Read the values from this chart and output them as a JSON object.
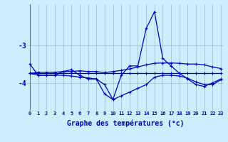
{
  "xlabel": "Graphe des températures (°c)",
  "background_color": "#cceeff",
  "plot_bg_color": "#cceeff",
  "line_color": "#0000bb",
  "grid_color": "#99bbcc",
  "hours": [
    0,
    1,
    2,
    3,
    4,
    5,
    6,
    7,
    8,
    9,
    10,
    11,
    12,
    13,
    14,
    15,
    16,
    17,
    18,
    19,
    20,
    21,
    22,
    23
  ],
  "temp_main": [
    -3.5,
    -3.8,
    -3.8,
    -3.8,
    -3.7,
    -3.65,
    -3.8,
    -3.9,
    -3.9,
    -4.3,
    -4.45,
    -3.8,
    -3.55,
    -3.55,
    -2.55,
    -2.1,
    -3.35,
    -3.55,
    -3.75,
    -3.9,
    -4.05,
    -4.1,
    -4.0,
    -3.9
  ],
  "temp_flat": [
    -3.75,
    -3.75,
    -3.75,
    -3.75,
    -3.75,
    -3.75,
    -3.75,
    -3.75,
    -3.75,
    -3.75,
    -3.75,
    -3.75,
    -3.75,
    -3.75,
    -3.75,
    -3.75,
    -3.75,
    -3.75,
    -3.75,
    -3.75,
    -3.75,
    -3.75,
    -3.75,
    -3.75
  ],
  "temp_min": [
    -3.75,
    -3.8,
    -3.8,
    -3.8,
    -3.8,
    -3.82,
    -3.85,
    -3.87,
    -3.9,
    -4.05,
    -4.45,
    -4.35,
    -4.25,
    -4.15,
    -4.05,
    -3.85,
    -3.8,
    -3.8,
    -3.82,
    -3.88,
    -3.98,
    -4.05,
    -4.05,
    -3.92
  ],
  "temp_max": [
    -3.75,
    -3.72,
    -3.72,
    -3.72,
    -3.7,
    -3.7,
    -3.68,
    -3.7,
    -3.7,
    -3.73,
    -3.7,
    -3.67,
    -3.63,
    -3.58,
    -3.52,
    -3.48,
    -3.47,
    -3.47,
    -3.48,
    -3.5,
    -3.5,
    -3.52,
    -3.58,
    -3.62
  ],
  "ylim": [
    -4.75,
    -1.9
  ],
  "yticks": [
    -4.0,
    -3.0
  ],
  "ytick_labels": [
    "-4",
    "-3"
  ],
  "xlim": [
    -0.3,
    23.3
  ],
  "xticks": [
    0,
    1,
    2,
    3,
    4,
    5,
    6,
    7,
    8,
    9,
    10,
    11,
    12,
    13,
    14,
    15,
    16,
    17,
    18,
    19,
    20,
    21,
    22,
    23
  ],
  "markersize": 3,
  "linewidth": 0.9
}
